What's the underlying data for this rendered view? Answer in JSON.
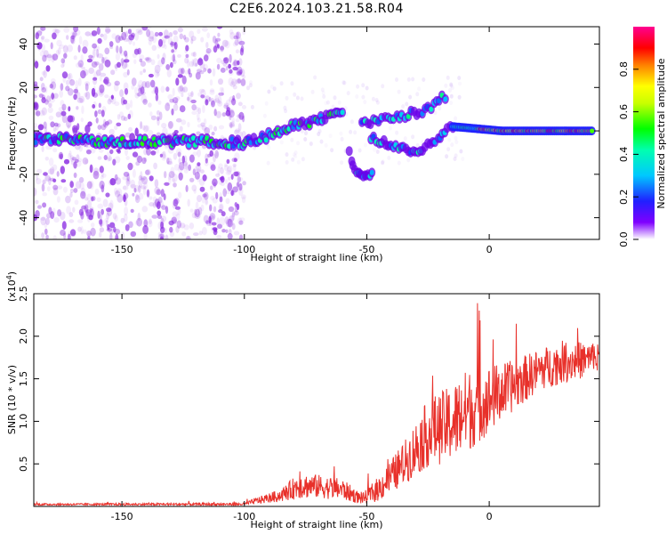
{
  "title": "C2E6.2024.103.21.58.R04",
  "colors": {
    "snr_line": "#e8302a",
    "frame": "#000000",
    "spectro_scatter": "#8a2be2"
  },
  "chart_data": [
    {
      "type": "heatmap",
      "xlabel": "Height of straight line (km)",
      "ylabel": "Frequency (Hz)",
      "xlim": [
        -186,
        45
      ],
      "ylim": [
        -50,
        48
      ],
      "x_ticks": [
        -150,
        -100,
        -50,
        0
      ],
      "x_tick_labels": [
        "-150",
        "-100",
        "-50",
        "0"
      ],
      "y_ticks": [
        -40,
        -20,
        0,
        20,
        40
      ],
      "y_tick_labels": [
        "-40",
        "-20",
        "0",
        "20",
        "40"
      ],
      "colorbar": {
        "label": "Normalized spectral amplitude",
        "range": [
          0,
          1
        ],
        "ticks": [
          0.0,
          0.2,
          0.4,
          0.6,
          0.8
        ],
        "tick_labels": [
          "0.0",
          "0.2",
          "0.4",
          "0.6",
          "0.8"
        ]
      },
      "noise_region_x": [
        -186,
        -100
      ],
      "main_trace": [
        {
          "x": -186,
          "y": -4
        },
        {
          "x": -170,
          "y": -4
        },
        {
          "x": -150,
          "y": -5
        },
        {
          "x": -130,
          "y": -5
        },
        {
          "x": -110,
          "y": -5
        },
        {
          "x": -100,
          "y": -6
        },
        {
          "x": -90,
          "y": -2
        },
        {
          "x": -80,
          "y": 2
        },
        {
          "x": -70,
          "y": 5
        },
        {
          "x": -63,
          "y": 8
        },
        {
          "x": -60,
          "y": 9
        }
      ],
      "branch_upper": [
        {
          "x": -52,
          "y": 3
        },
        {
          "x": -45,
          "y": 5
        },
        {
          "x": -35,
          "y": 7
        },
        {
          "x": -25,
          "y": 10
        },
        {
          "x": -18,
          "y": 16
        }
      ],
      "branch_lower": [
        {
          "x": -48,
          "y": -3
        },
        {
          "x": -40,
          "y": -7
        },
        {
          "x": -30,
          "y": -10
        },
        {
          "x": -22,
          "y": -4
        },
        {
          "x": -15,
          "y": 2
        }
      ],
      "branch_deep": [
        {
          "x": -57,
          "y": -11
        },
        {
          "x": -54,
          "y": -20
        },
        {
          "x": -48,
          "y": -20
        }
      ],
      "tail_trace": [
        {
          "x": -15,
          "y": 2
        },
        {
          "x": -5,
          "y": 1
        },
        {
          "x": 5,
          "y": 0
        },
        {
          "x": 20,
          "y": 0
        },
        {
          "x": 42,
          "y": 0
        }
      ]
    },
    {
      "type": "line",
      "xlabel": "Height of straight line (km)",
      "ylabel": "SNR (10 * v/v)",
      "y_multiplier": "(x10",
      "y_multiplier_exp": "4",
      "xlim": [
        -186,
        45
      ],
      "ylim": [
        0,
        2.5
      ],
      "x_ticks": [
        -150,
        -100,
        -50,
        0
      ],
      "x_tick_labels": [
        "-150",
        "-100",
        "-50",
        "0"
      ],
      "y_ticks": [
        0.5,
        1.0,
        1.5,
        2.0,
        2.5
      ],
      "y_tick_labels": [
        "0.5",
        "1.0",
        "1.5",
        "2.0",
        "2.5"
      ],
      "envelope": [
        {
          "x": -186,
          "base": 0.02,
          "amp": 0.02
        },
        {
          "x": -100,
          "base": 0.02,
          "amp": 0.03
        },
        {
          "x": -95,
          "base": 0.05,
          "amp": 0.08
        },
        {
          "x": -85,
          "base": 0.1,
          "amp": 0.15
        },
        {
          "x": -78,
          "base": 0.18,
          "amp": 0.3
        },
        {
          "x": -70,
          "base": 0.18,
          "amp": 0.28
        },
        {
          "x": -60,
          "base": 0.15,
          "amp": 0.25
        },
        {
          "x": -52,
          "base": 0.06,
          "amp": 0.12
        },
        {
          "x": -45,
          "base": 0.15,
          "amp": 0.3
        },
        {
          "x": -35,
          "base": 0.4,
          "amp": 0.5
        },
        {
          "x": -25,
          "base": 0.7,
          "amp": 0.8
        },
        {
          "x": -15,
          "base": 0.8,
          "amp": 0.9
        },
        {
          "x": -10,
          "base": 0.9,
          "amp": 1.0
        },
        {
          "x": -5,
          "base": 1.0,
          "amp": 0.9
        },
        {
          "x": 0,
          "base": 1.1,
          "amp": 0.8
        },
        {
          "x": 10,
          "base": 1.3,
          "amp": 0.6
        },
        {
          "x": 20,
          "base": 1.5,
          "amp": 0.5
        },
        {
          "x": 30,
          "base": 1.6,
          "amp": 0.5
        },
        {
          "x": 42,
          "base": 1.65,
          "amp": 0.4
        }
      ]
    }
  ]
}
